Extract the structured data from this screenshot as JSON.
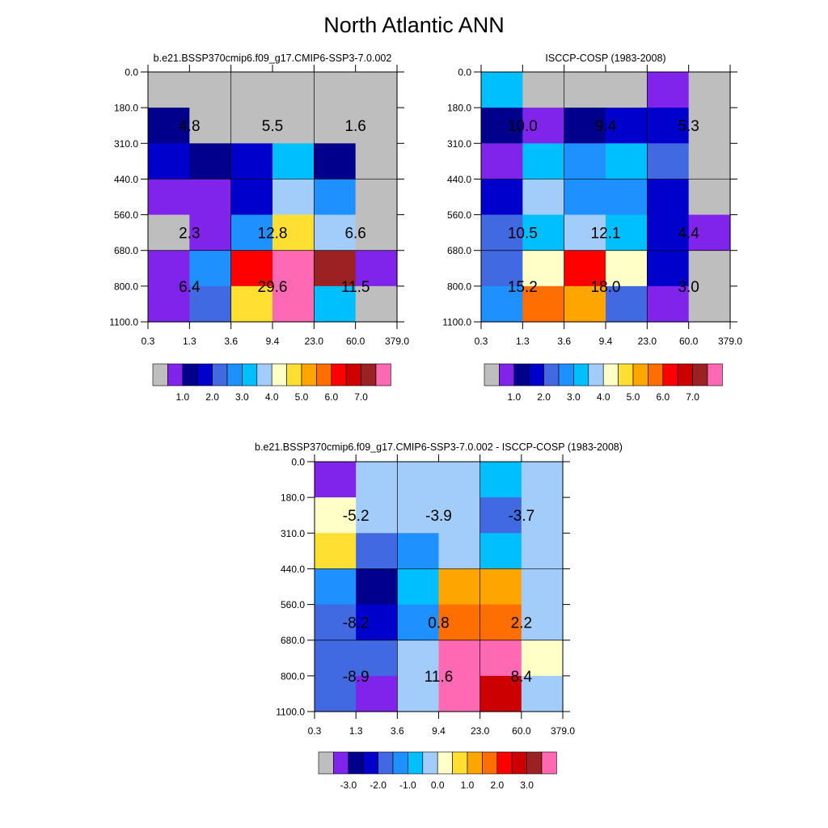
{
  "title": "North Atlantic ANN",
  "y_ticks": [
    "0.0",
    "180.0",
    "310.0",
    "440.0",
    "560.0",
    "680.0",
    "800.0",
    "1100.0"
  ],
  "x_ticks": [
    "0.3",
    "1.3",
    "3.6",
    "9.4",
    "23.0",
    "60.0",
    "379.0"
  ],
  "palette": {
    "gray": "#bebebe",
    "purple": "#8023eb",
    "navy": "#00008c",
    "blue": "#0000cd",
    "royal": "#4169e1",
    "dodger": "#1e90ff",
    "sky": "#00bfff",
    "pale": "#a2cdfa",
    "cream": "#ffffc8",
    "yellow": "#ffdf32",
    "orange_light": "#ffa500",
    "orange": "#ff6e00",
    "red": "#ff0000",
    "crimson": "#cd0000",
    "brown": "#9b2123",
    "pink": "#ff69b4"
  },
  "colorbar_order": [
    "gray",
    "purple",
    "navy",
    "blue",
    "royal",
    "dodger",
    "sky",
    "pale",
    "cream",
    "yellow",
    "orange_light",
    "orange",
    "red",
    "crimson",
    "brown",
    "pink"
  ],
  "chart_data": [
    {
      "type": "heatmap",
      "title": "b.e21.BSSP370cmip6.f09_g17.CMIP6-SSP3-7.0.002",
      "colorbar_labels": [
        "1.0",
        "2.0",
        "3.0",
        "4.0",
        "5.0",
        "6.0",
        "7.0"
      ],
      "cells": [
        [
          "gray",
          "gray",
          "gray",
          "gray",
          "gray",
          "gray"
        ],
        [
          "navy",
          "gray",
          "gray",
          "gray",
          "gray",
          "gray"
        ],
        [
          "blue",
          "navy",
          "blue",
          "sky",
          "navy",
          "gray"
        ],
        [
          "purple",
          "purple",
          "blue",
          "pale",
          "dodger",
          "gray"
        ],
        [
          "gray",
          "purple",
          "dodger",
          "yellow",
          "pale",
          "gray"
        ],
        [
          "purple",
          "dodger",
          "red",
          "pink",
          "brown",
          "purple"
        ],
        [
          "purple",
          "royal",
          "yellow",
          "pink",
          "sky",
          "gray"
        ]
      ],
      "annotations": [
        [
          "4.8",
          "5.5",
          "1.6"
        ],
        [
          "2.3",
          "12.8",
          "6.6"
        ],
        [
          "6.4",
          "29.6",
          "11.5"
        ]
      ]
    },
    {
      "type": "heatmap",
      "title": "ISCCP-COSP (1983-2008)",
      "colorbar_labels": [
        "1.0",
        "2.0",
        "3.0",
        "4.0",
        "5.0",
        "6.0",
        "7.0"
      ],
      "cells": [
        [
          "sky",
          "gray",
          "gray",
          "gray",
          "purple",
          "gray"
        ],
        [
          "navy",
          "purple",
          "navy",
          "blue",
          "blue",
          "gray"
        ],
        [
          "purple",
          "sky",
          "dodger",
          "sky",
          "royal",
          "gray"
        ],
        [
          "blue",
          "pale",
          "dodger",
          "dodger",
          "blue",
          "gray"
        ],
        [
          "royal",
          "sky",
          "pale",
          "sky",
          "blue",
          "purple"
        ],
        [
          "royal",
          "cream",
          "red",
          "cream",
          "blue",
          "gray"
        ],
        [
          "dodger",
          "orange",
          "orange_light",
          "royal",
          "purple",
          "gray"
        ]
      ],
      "annotations": [
        [
          "10.0",
          "9.4",
          "5.3"
        ],
        [
          "10.5",
          "12.1",
          "4.4"
        ],
        [
          "15.2",
          "18.0",
          "3.0"
        ]
      ]
    },
    {
      "type": "heatmap",
      "title": "b.e21.BSSP370cmip6.f09_g17.CMIP6-SSP3-7.0.002 - ISCCP-COSP (1983-2008)",
      "colorbar_labels": [
        "-3.0",
        "-2.0",
        "-1.0",
        "0.0",
        "1.0",
        "2.0",
        "3.0"
      ],
      "cells": [
        [
          "purple",
          "pale",
          "pale",
          "pale",
          "sky",
          "pale"
        ],
        [
          "cream",
          "pale",
          "pale",
          "pale",
          "royal",
          "pale"
        ],
        [
          "yellow",
          "royal",
          "dodger",
          "pale",
          "sky",
          "pale"
        ],
        [
          "dodger",
          "navy",
          "sky",
          "orange_light",
          "orange_light",
          "pale"
        ],
        [
          "royal",
          "blue",
          "dodger",
          "orange",
          "orange",
          "pale"
        ],
        [
          "royal",
          "royal",
          "pale",
          "pink",
          "pink",
          "cream"
        ],
        [
          "royal",
          "purple",
          "pale",
          "pink",
          "crimson",
          "pale"
        ]
      ],
      "annotations": [
        [
          "-5.2",
          "-3.9",
          "-3.7"
        ],
        [
          "-8.2",
          "0.8",
          "2.2"
        ],
        [
          "-8.9",
          "11.6",
          "8.4"
        ]
      ]
    }
  ]
}
